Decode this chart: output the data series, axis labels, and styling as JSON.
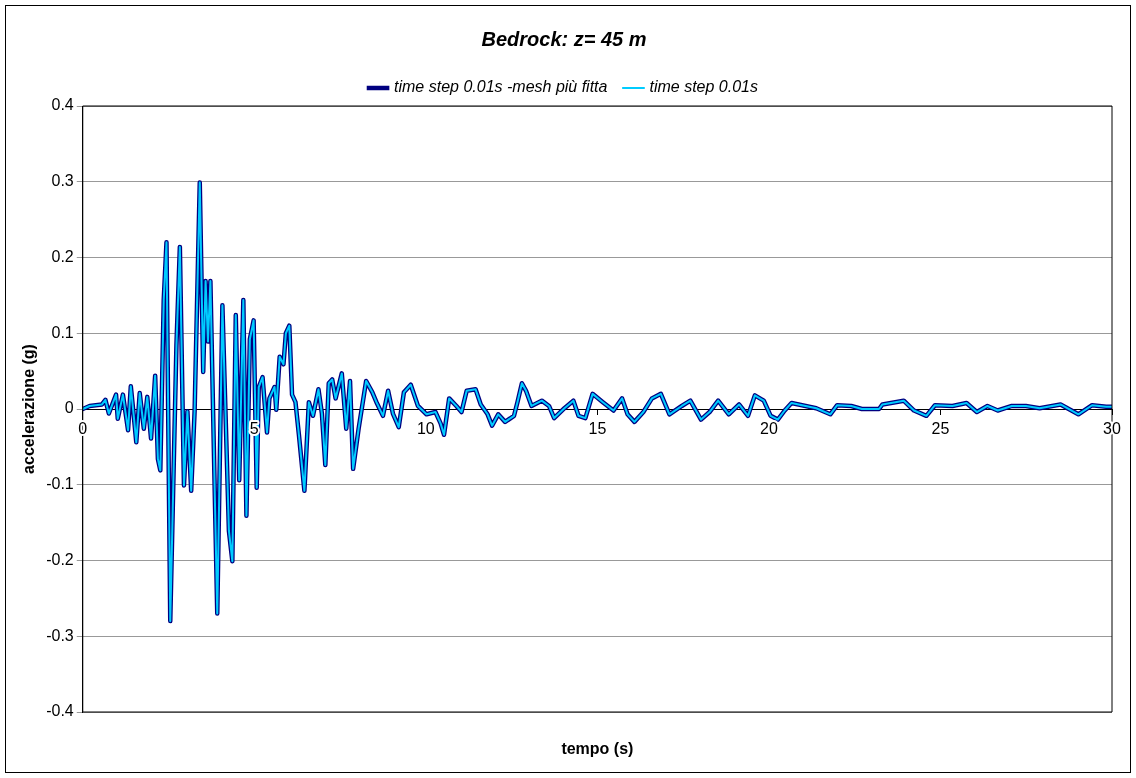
{
  "chart_data": {
    "type": "line",
    "title": "Bedrock: z= 45 m",
    "xlabel": "tempo (s)",
    "ylabel": "accelerazione (g)",
    "x": [
      0,
      0.2,
      0.56,
      0.66,
      0.76,
      0.97,
      1.02,
      1.17,
      1.32,
      1.4,
      1.48,
      1.56,
      1.66,
      1.78,
      1.88,
      1.99,
      2.11,
      2.19,
      2.26,
      2.36,
      2.44,
      2.55,
      2.67,
      2.73,
      2.83,
      2.95,
      3.05,
      3.16,
      3.26,
      3.41,
      3.51,
      3.58,
      3.65,
      3.72,
      3.92,
      4.07,
      4.26,
      4.36,
      4.46,
      4.56,
      4.68,
      4.77,
      4.87,
      4.98,
      5.07,
      5.13,
      5.24,
      5.37,
      5.44,
      5.59,
      5.64,
      5.74,
      5.85,
      5.92,
      6.02,
      6.1,
      6.2,
      6.3,
      6.46,
      6.59,
      6.71,
      6.87,
      6.97,
      7.07,
      7.17,
      7.27,
      7.37,
      7.55,
      7.68,
      7.79,
      7.88,
      8.04,
      8.26,
      8.44,
      8.56,
      8.75,
      8.9,
      9.04,
      9.21,
      9.36,
      9.56,
      9.77,
      10.02,
      10.28,
      10.43,
      10.53,
      10.68,
      10.89,
      11.04,
      11.19,
      11.45,
      11.6,
      11.8,
      11.93,
      12.11,
      12.31,
      12.57,
      12.67,
      12.8,
      12.92,
      13.08,
      13.38,
      13.59,
      13.74,
      14.04,
      14.3,
      14.45,
      14.65,
      14.86,
      15.16,
      15.47,
      15.72,
      15.88,
      16.08,
      16.34,
      16.59,
      16.85,
      17.1,
      17.46,
      17.71,
      18.02,
      18.27,
      18.52,
      18.83,
      19.13,
      19.39,
      19.59,
      19.85,
      20.05,
      20.26,
      20.46,
      20.66,
      21.07,
      21.38,
      21.79,
      21.99,
      22.4,
      22.71,
      23.21,
      23.31,
      23.93,
      24.23,
      24.59,
      24.84,
      25.35,
      25.76,
      26.06,
      26.37,
      26.67,
      27.08,
      27.49,
      27.89,
      28.5,
      29.02,
      29.42,
      29.83,
      30
    ],
    "series": [
      {
        "name": "time step 0.01s -mesh più fitta",
        "color": "#000080",
        "values": [
          0,
          0.004,
          0.006,
          0.012,
          -0.006,
          0.019,
          -0.013,
          0.019,
          -0.028,
          0.03,
          -0.006,
          -0.044,
          0.021,
          -0.026,
          0.016,
          -0.039,
          0.044,
          -0.066,
          -0.081,
          0.144,
          0.22,
          -0.28,
          -0.036,
          0.084,
          0.214,
          -0.101,
          -0.003,
          -0.108,
          -0.003,
          0.299,
          0.049,
          0.169,
          0.089,
          0.169,
          -0.27,
          0.137,
          -0.161,
          -0.201,
          0.124,
          -0.094,
          0.144,
          -0.141,
          0.092,
          0.117,
          -0.104,
          0.029,
          0.042,
          -0.031,
          0.014,
          0.029,
          -0.001,
          0.069,
          0.059,
          0.1,
          0.11,
          0.019,
          0.009,
          -0.034,
          -0.108,
          0.009,
          -0.009,
          0.026,
          -0.006,
          -0.074,
          0.034,
          0.039,
          0.014,
          0.047,
          -0.026,
          0.037,
          -0.079,
          -0.026,
          0.037,
          0.022,
          0.009,
          -0.009,
          0.024,
          -0.006,
          -0.024,
          0.022,
          0.032,
          0.004,
          -0.007,
          -0.004,
          -0.019,
          -0.034,
          0.014,
          0.004,
          -0.004,
          0.024,
          0.026,
          0.006,
          -0.007,
          -0.022,
          -0.007,
          -0.017,
          -0.009,
          0.009,
          0.034,
          0.024,
          0.004,
          0.011,
          0.004,
          -0.012,
          0.001,
          0.011,
          -0.009,
          -0.012,
          0.02,
          0.009,
          -0.002,
          0.014,
          -0.007,
          -0.017,
          -0.004,
          0.014,
          0.02,
          -0.007,
          0.004,
          0.011,
          -0.014,
          -0.004,
          0.011,
          -0.007,
          0.006,
          -0.009,
          0.018,
          0.011,
          -0.009,
          -0.014,
          -0.002,
          0.008,
          0.004,
          0.001,
          -0.007,
          0.005,
          0.004,
          0,
          0,
          0.006,
          0.011,
          -0.002,
          -0.009,
          0.005,
          0.004,
          0.008,
          -0.004,
          0.004,
          -0.002,
          0.004,
          0.004,
          0.001,
          0.006,
          -0.007,
          0.005,
          0.003,
          0.003
        ]
      },
      {
        "name": "time step 0.01s",
        "color": "#00ccff",
        "values": [
          0,
          0.004,
          0.006,
          0.012,
          -0.006,
          0.019,
          -0.013,
          0.019,
          -0.028,
          0.03,
          -0.006,
          -0.044,
          0.021,
          -0.026,
          0.016,
          -0.039,
          0.044,
          -0.066,
          -0.081,
          0.144,
          0.22,
          -0.28,
          -0.036,
          0.084,
          0.214,
          -0.101,
          -0.003,
          -0.108,
          -0.003,
          0.299,
          0.049,
          0.169,
          0.089,
          0.169,
          -0.27,
          0.137,
          -0.161,
          -0.201,
          0.124,
          -0.094,
          0.144,
          -0.141,
          0.092,
          0.117,
          -0.104,
          0.029,
          0.042,
          -0.031,
          0.014,
          0.029,
          -0.001,
          0.069,
          0.059,
          0.1,
          0.11,
          0.019,
          0.009,
          -0.034,
          -0.108,
          0.009,
          -0.009,
          0.026,
          -0.006,
          -0.074,
          0.034,
          0.039,
          0.014,
          0.047,
          -0.026,
          0.037,
          -0.079,
          -0.026,
          0.037,
          0.022,
          0.009,
          -0.009,
          0.024,
          -0.006,
          -0.024,
          0.022,
          0.032,
          0.004,
          -0.007,
          -0.004,
          -0.019,
          -0.034,
          0.014,
          0.004,
          -0.004,
          0.024,
          0.026,
          0.006,
          -0.007,
          -0.022,
          -0.007,
          -0.017,
          -0.009,
          0.009,
          0.034,
          0.024,
          0.004,
          0.011,
          0.004,
          -0.012,
          0.001,
          0.011,
          -0.009,
          -0.012,
          0.02,
          0.009,
          -0.002,
          0.014,
          -0.007,
          -0.017,
          -0.004,
          0.014,
          0.02,
          -0.007,
          0.004,
          0.011,
          -0.014,
          -0.004,
          0.011,
          -0.007,
          0.006,
          -0.009,
          0.018,
          0.011,
          -0.009,
          -0.014,
          -0.002,
          0.008,
          0.004,
          0.001,
          -0.007,
          0.005,
          0.004,
          0,
          0,
          0.006,
          0.011,
          -0.002,
          -0.009,
          0.005,
          0.004,
          0.008,
          -0.004,
          0.004,
          -0.002,
          0.004,
          0.004,
          0.001,
          0.006,
          -0.007,
          0.005,
          0.003,
          0.003
        ]
      }
    ],
    "xlim": [
      0,
      30
    ],
    "xticks": [
      0,
      5,
      10,
      15,
      20,
      25,
      30
    ],
    "ylim": [
      -0.4,
      0.4
    ],
    "yticks": [
      -0.4,
      -0.3,
      -0.2,
      -0.1,
      0,
      0.1,
      0.2,
      0.3,
      0.4
    ],
    "grid": "y",
    "legend": "top",
    "marker": "none",
    "line_style": "solid"
  }
}
